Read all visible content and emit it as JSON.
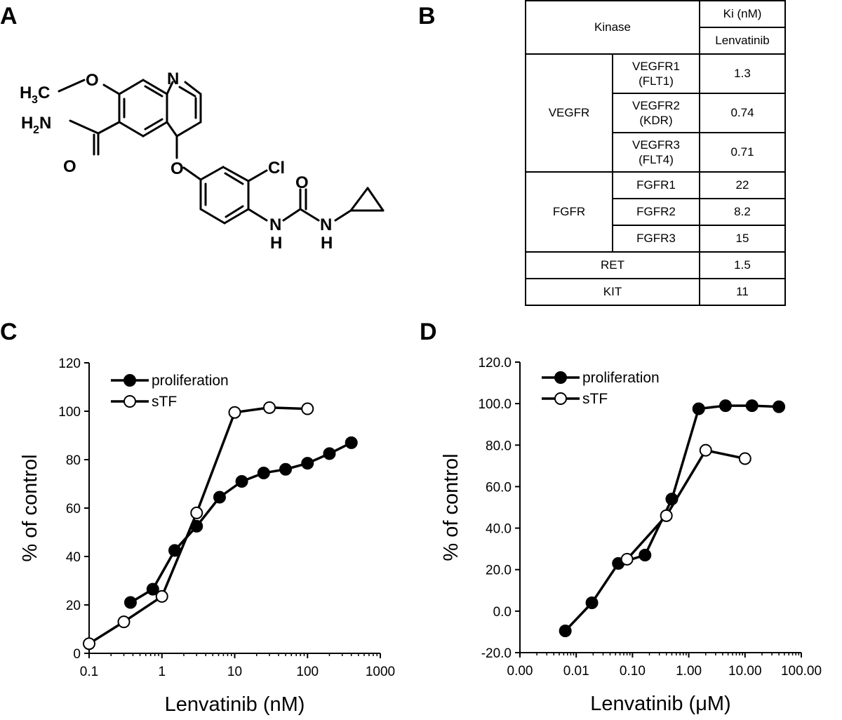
{
  "panels": {
    "a": "A",
    "b": "B",
    "c": "C",
    "d": "D"
  },
  "molecule": {
    "atoms": {
      "h3c_h": "H",
      "h3c_3": "3",
      "h3c_c": "C",
      "o_methoxy": "O",
      "n_ring": "N",
      "h2n_h": "H",
      "h2n_2": "2",
      "h2n_n": "N",
      "o_amide": "O",
      "o_ether": "O",
      "cl": "Cl",
      "o_urea": "O",
      "n_urea1": "N",
      "h_urea1": "H",
      "n_urea2": "N",
      "h_urea2": "H"
    }
  },
  "table": {
    "header_kinase": "Kinase",
    "header_ki": "Ki (nM)",
    "header_drug": "Lenvatinib",
    "groups": [
      {
        "name": "VEGFR",
        "rows": [
          {
            "line1": "VEGFR1",
            "line2": "(FLT1)",
            "value": "1.3"
          },
          {
            "line1": "VEGFR2",
            "line2": "(KDR)",
            "value": "0.74"
          },
          {
            "line1": "VEGFR3",
            "line2": "(FLT4)",
            "value": "0.71"
          }
        ]
      },
      {
        "name": "FGFR",
        "rows": [
          {
            "line1": "FGFR1",
            "value": "22"
          },
          {
            "line1": "FGFR2",
            "value": "8.2"
          },
          {
            "line1": "FGFR3",
            "value": "15"
          }
        ]
      }
    ],
    "singles": [
      {
        "name": "RET",
        "value": "1.5"
      },
      {
        "name": "KIT",
        "value": "11"
      }
    ]
  },
  "chart_data": [
    {
      "type": "line",
      "panel": "C",
      "xlabel": "Lenvatinib (nM)",
      "ylabel": "% of control",
      "xscale": "log",
      "xlim": [
        0.1,
        1000
      ],
      "ylim": [
        0,
        120
      ],
      "xticks": [
        0.1,
        1,
        10,
        100,
        1000
      ],
      "xtick_labels": [
        "0.1",
        "1",
        "10",
        "100",
        "1000"
      ],
      "yticks": [
        0,
        20,
        40,
        60,
        80,
        100,
        120
      ],
      "ytick_labels": [
        "0",
        "20",
        "40",
        "60",
        "80",
        "100",
        "120"
      ],
      "legend_position": "top-left",
      "grid": false,
      "series": [
        {
          "name": "proliferation",
          "marker": "filled",
          "x": [
            0.37,
            0.75,
            1.5,
            3,
            6.2,
            12.5,
            25,
            50,
            100,
            200,
            400
          ],
          "y": [
            21,
            26.5,
            42.5,
            52.5,
            64.5,
            71,
            74.5,
            76,
            78.5,
            82.5,
            87
          ]
        },
        {
          "name": "sTF",
          "marker": "open",
          "x": [
            0.1,
            0.3,
            1,
            3,
            10,
            30,
            100
          ],
          "y": [
            4,
            13,
            23.5,
            58,
            99.5,
            101.5,
            101
          ]
        }
      ]
    },
    {
      "type": "line",
      "panel": "D",
      "xlabel": "Lenvatinib (μM)",
      "ylabel": "% of control",
      "xscale": "log",
      "xlim": [
        0.001,
        100
      ],
      "ylim": [
        -20,
        120
      ],
      "xticks": [
        0.001,
        0.01,
        0.1,
        1,
        10,
        100
      ],
      "xtick_labels": [
        "0.00",
        "0.01",
        "0.10",
        "1.00",
        "10.00",
        "100.00"
      ],
      "yticks": [
        -20,
        0,
        20,
        40,
        60,
        80,
        100,
        120
      ],
      "ytick_labels": [
        "-20.0",
        "0.0",
        "20.0",
        "40.0",
        "60.0",
        "80.0",
        "100.0",
        "120.0"
      ],
      "legend_position": "top-left",
      "grid": false,
      "series": [
        {
          "name": "proliferation",
          "marker": "filled",
          "x": [
            0.0064,
            0.019,
            0.056,
            0.167,
            0.5,
            1.5,
            4.5,
            13.3,
            40
          ],
          "y": [
            -9.5,
            4,
            23,
            27,
            54,
            97.5,
            99,
            99,
            98.5
          ]
        },
        {
          "name": "sTF",
          "marker": "open",
          "x": [
            0.08,
            0.4,
            2,
            10
          ],
          "y": [
            25,
            46,
            77.5,
            73.5
          ]
        }
      ]
    }
  ]
}
